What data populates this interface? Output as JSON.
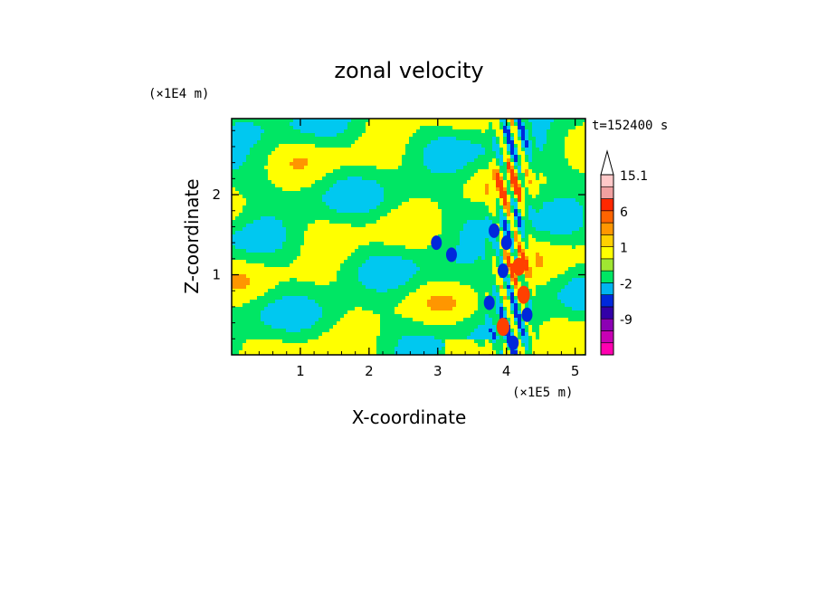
{
  "chart_data": {
    "type": "heatmap",
    "title": "zonal velocity",
    "xlabel": "X-coordinate",
    "ylabel": "Z-coordinate",
    "x_scale_label": "(×1E5 m)",
    "y_scale_label": "(×1E4 m)",
    "time_label": "t=152400 s",
    "xlim": [
      0,
      5.15
    ],
    "ylim": [
      0,
      2.95
    ],
    "x_ticks": [
      {
        "value": 1,
        "label": "1"
      },
      {
        "value": 2,
        "label": "2"
      },
      {
        "value": 3,
        "label": "3"
      },
      {
        "value": 4,
        "label": "4"
      },
      {
        "value": 5,
        "label": "5"
      }
    ],
    "y_ticks": [
      {
        "value": 1,
        "label": "1"
      },
      {
        "value": 2,
        "label": "2"
      }
    ],
    "colorbar": {
      "levels": [
        {
          "color": "#ff00b0"
        },
        {
          "color": "#c800b4"
        },
        {
          "color": "#8c00b4",
          "label": "-9"
        },
        {
          "color": "#3200a8"
        },
        {
          "color": "#0028dc"
        },
        {
          "color": "#00b4f0",
          "label": "-2"
        },
        {
          "color": "#00e664"
        },
        {
          "color": "#a0e632"
        },
        {
          "color": "#ffff00",
          "label": "1"
        },
        {
          "color": "#ffd000"
        },
        {
          "color": "#ff9600"
        },
        {
          "color": "#ff6400",
          "label": "6"
        },
        {
          "color": "#ff2800"
        },
        {
          "color": "#f0a0a0"
        },
        {
          "color": "#ffc8c8",
          "label": "15.1"
        }
      ],
      "extend_max": true
    },
    "field_colors": {
      "strong_neg": "#0028dc",
      "neg": "#00c8f0",
      "neutral": "#00e664",
      "pos": "#ffff00",
      "strong_pos": "#ff9600",
      "max_pos": "#ff4000",
      "dark_neg": "#3200a8"
    }
  }
}
